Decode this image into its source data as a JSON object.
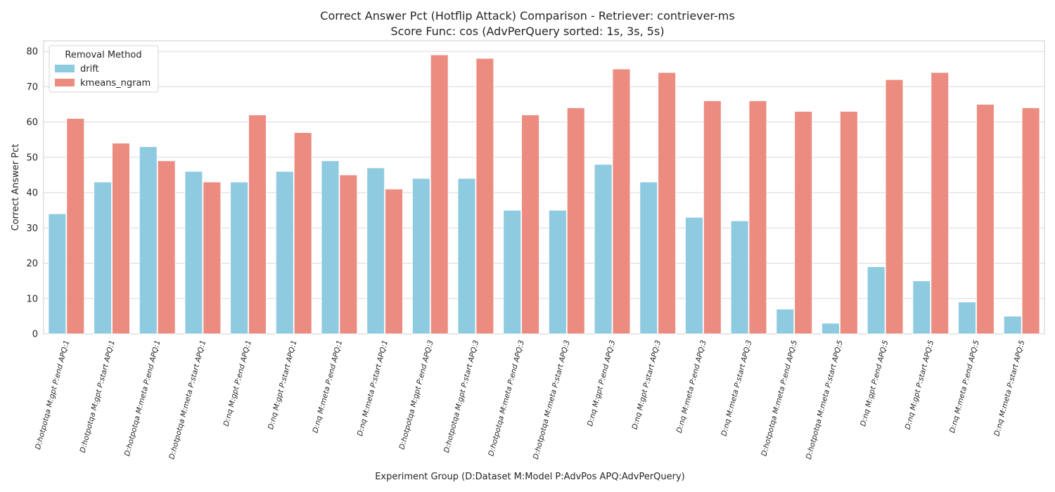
{
  "chart_data": {
    "type": "bar",
    "title": "Correct Answer Pct (Hotflip Attack) Comparison - Retriever: contriever-ms",
    "subtitle": "Score Func: cos (AdvPerQuery sorted: 1s, 3s, 5s)",
    "xlabel": "Experiment Group (D:Dataset M:Model P:AdvPos APQ:AdvPerQuery)",
    "ylabel": "Correct Answer Pct",
    "ylim": [
      0,
      83
    ],
    "yticks": [
      0,
      10,
      20,
      30,
      40,
      50,
      60,
      70,
      80
    ],
    "grid": true,
    "legend": {
      "title": "Removal Method",
      "placement": "top-left"
    },
    "categories": [
      "D:hotpotqa M:gpt P:end APQ:1",
      "D:hotpotqa M:gpt P:start APQ:1",
      "D:hotpotqa M:meta P:end APQ:1",
      "D:hotpotqa M:meta P:start APQ:1",
      "D:nq M:gpt P:end APQ:1",
      "D:nq M:gpt P:start APQ:1",
      "D:nq M:meta P:end APQ:1",
      "D:nq M:meta P:start APQ:1",
      "D:hotpotqa M:gpt P:end APQ:3",
      "D:hotpotqa M:gpt P:start APQ:3",
      "D:hotpotqa M:meta P:end APQ:3",
      "D:hotpotqa M:meta P:start APQ:3",
      "D:nq M:gpt P:end APQ:3",
      "D:nq M:gpt P:start APQ:3",
      "D:nq M:meta P:end APQ:3",
      "D:nq M:meta P:start APQ:3",
      "D:hotpotqa M:meta P:end APQ:5",
      "D:hotpotqa M:meta P:start APQ:5",
      "D:nq M:gpt P:end APQ:5",
      "D:nq M:gpt P:start APQ:5",
      "D:nq M:meta P:end APQ:5",
      "D:nq M:meta P:start APQ:5"
    ],
    "series": [
      {
        "name": "drift",
        "color": "#8ecae0",
        "values": [
          34,
          43,
          53,
          46,
          43,
          46,
          49,
          47,
          44,
          44,
          35,
          35,
          48,
          43,
          33,
          32,
          7,
          3,
          19,
          15,
          9,
          5
        ]
      },
      {
        "name": "kmeans_ngram",
        "color": "#ec8c80",
        "values": [
          61,
          54,
          49,
          43,
          62,
          57,
          45,
          41,
          79,
          78,
          62,
          64,
          75,
          74,
          66,
          66,
          63,
          63,
          72,
          74,
          65,
          64
        ]
      }
    ]
  }
}
